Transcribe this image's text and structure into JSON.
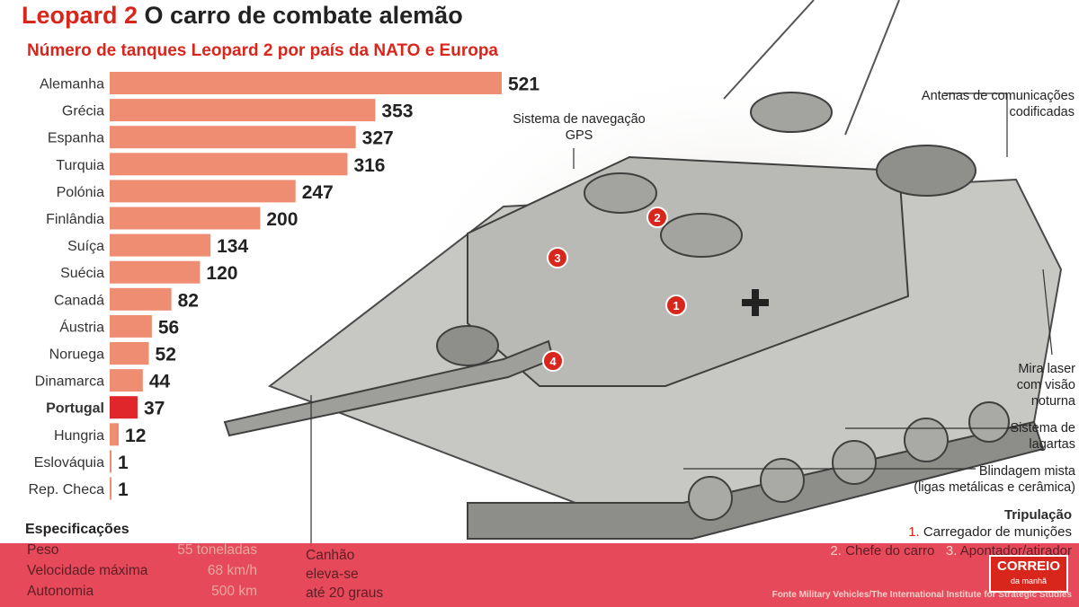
{
  "title": {
    "highlight": "Leopard 2",
    "rest": "O carro de combate alemão"
  },
  "subtitle": "Número de tanques Leopard 2 por país da NATO e Europa",
  "chart_data": {
    "type": "bar",
    "orientation": "horizontal",
    "categories": [
      "Alemanha",
      "Grécia",
      "Espanha",
      "Turquia",
      "Polónia",
      "Finlândia",
      "Suíça",
      "Suécia",
      "Canadá",
      "Áustria",
      "Noruega",
      "Dinamarca",
      "Portugal",
      "Hungria",
      "Eslováquia",
      "Rep. Checa"
    ],
    "values": [
      521,
      353,
      327,
      316,
      247,
      200,
      134,
      120,
      82,
      56,
      52,
      44,
      37,
      12,
      1,
      1
    ],
    "highlight_category": "Portugal",
    "colors": {
      "bar": "#ee8d72",
      "highlight": "#e0262a",
      "highlight_text": "#d9261c"
    },
    "xlim": [
      0,
      521
    ],
    "grid": false
  },
  "labels": {
    "gps": "Sistema de navegação GPS",
    "antenas": "Antenas de comunicações codificadas",
    "mira": "Mira laser com visão noturna",
    "lagartas": "Sistema de lagartas",
    "blindagem_1": "Blindagem mista",
    "blindagem_2": "(ligas metálicas e cerâmica)"
  },
  "crew": {
    "title": "Tripulação",
    "m1_num": "1.",
    "m1": "Carregador de munições",
    "m2_num": "2.",
    "m2": "Chefe do carro",
    "m3_num": "3.",
    "m3": "Apontador/atirador"
  },
  "markers": [
    "1",
    "2",
    "3",
    "4"
  ],
  "specs": {
    "title": "Especificações",
    "rows": [
      {
        "label": "Peso",
        "value": "55 toneladas"
      },
      {
        "label": "Velocidade máxima",
        "value": "68 km/h"
      },
      {
        "label": "Autonomia",
        "value": "500 km"
      }
    ]
  },
  "cannon": {
    "line1": "Canhão",
    "line2": "eleva-se",
    "line3": "até 20 graus"
  },
  "source": "Fonte Military Vehicles/The International Institute for Strategic Studies",
  "brand": {
    "name": "CORREIO",
    "sub": "da manhã"
  }
}
